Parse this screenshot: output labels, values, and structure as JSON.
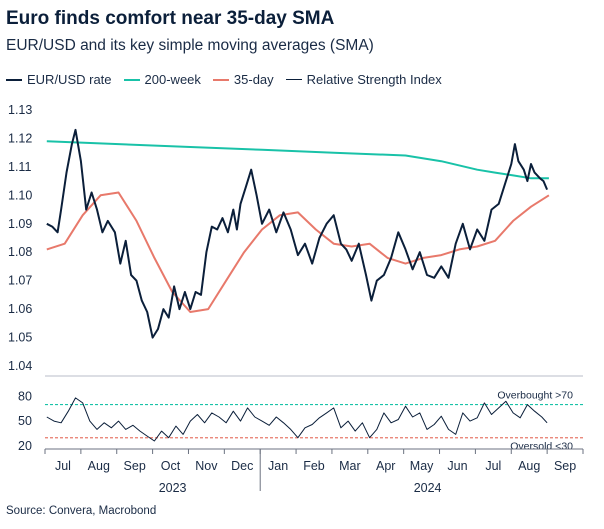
{
  "chart_data": {
    "type": "line",
    "title": "Euro finds comfort near 35-day SMA",
    "subtitle": "EUR/USD and its key simple moving averages (SMA)",
    "source": "Source: Convera, Macrobond",
    "legend": [
      {
        "name": "EUR/USD rate",
        "color": "#0b1f3a"
      },
      {
        "name": "200-week",
        "color": "#19c2a8"
      },
      {
        "name": "35-day",
        "color": "#e8796b"
      },
      {
        "name": "Relative Strength Index",
        "color": "#0b1f3a"
      }
    ],
    "x_ticks": [
      "Jul",
      "Aug",
      "Sep",
      "Oct",
      "Nov",
      "Dec",
      "Jan",
      "Feb",
      "Mar",
      "Apr",
      "May",
      "Jun",
      "Jul",
      "Aug",
      "Sep"
    ],
    "year_labels": [
      {
        "label": "2023"
      },
      {
        "label": "2024"
      }
    ],
    "main_panel": {
      "ylim": [
        1.04,
        1.13
      ],
      "y_ticks": [
        "1.13",
        "1.12",
        "1.11",
        "1.10",
        "1.09",
        "1.08",
        "1.07",
        "1.06",
        "1.05",
        "1.04"
      ],
      "series": [
        {
          "name": "EUR/USD rate",
          "color": "#0b1f3a",
          "x": [
            0.0,
            0.15,
            0.3,
            0.4,
            0.55,
            0.7,
            0.8,
            0.95,
            1.1,
            1.25,
            1.4,
            1.55,
            1.7,
            1.9,
            2.05,
            2.2,
            2.35,
            2.5,
            2.65,
            2.8,
            2.95,
            3.1,
            3.25,
            3.4,
            3.55,
            3.7,
            3.85,
            4.0,
            4.15,
            4.3,
            4.45,
            4.6,
            4.75,
            4.9,
            5.05,
            5.2,
            5.3,
            5.4,
            5.55,
            5.7,
            5.85,
            6.0,
            6.2,
            6.4,
            6.6,
            6.8,
            7.0,
            7.2,
            7.4,
            7.6,
            7.8,
            8.0,
            8.2,
            8.35,
            8.5,
            8.7,
            8.9,
            9.05,
            9.2,
            9.4,
            9.6,
            9.8,
            10.0,
            10.2,
            10.4,
            10.6,
            10.8,
            11.0,
            11.2,
            11.4,
            11.6,
            11.8,
            12.0,
            12.2,
            12.4,
            12.6,
            12.8,
            12.95,
            13.05,
            13.15,
            13.3,
            13.4,
            13.5,
            13.6,
            13.75,
            13.85,
            13.95
          ],
          "values": [
            1.09,
            1.089,
            1.087,
            1.095,
            1.108,
            1.118,
            1.123,
            1.112,
            1.095,
            1.101,
            1.095,
            1.087,
            1.091,
            1.087,
            1.076,
            1.084,
            1.072,
            1.07,
            1.063,
            1.059,
            1.05,
            1.053,
            1.06,
            1.057,
            1.068,
            1.06,
            1.066,
            1.06,
            1.066,
            1.065,
            1.08,
            1.089,
            1.088,
            1.092,
            1.087,
            1.095,
            1.088,
            1.097,
            1.103,
            1.109,
            1.1,
            1.09,
            1.095,
            1.087,
            1.094,
            1.088,
            1.079,
            1.083,
            1.076,
            1.085,
            1.09,
            1.093,
            1.083,
            1.081,
            1.077,
            1.083,
            1.072,
            1.063,
            1.07,
            1.072,
            1.078,
            1.087,
            1.081,
            1.074,
            1.08,
            1.072,
            1.071,
            1.075,
            1.071,
            1.083,
            1.09,
            1.081,
            1.088,
            1.084,
            1.095,
            1.097,
            1.105,
            1.111,
            1.118,
            1.112,
            1.109,
            1.105,
            1.111,
            1.108,
            1.106,
            1.105,
            1.102
          ]
        },
        {
          "name": "200-week",
          "color": "#19c2a8",
          "x": [
            0,
            2,
            4,
            6,
            8,
            10,
            11,
            12,
            12.5,
            13,
            13.5,
            14
          ],
          "values": [
            1.119,
            1.118,
            1.117,
            1.116,
            1.115,
            1.114,
            1.112,
            1.109,
            1.108,
            1.107,
            1.106,
            1.106
          ]
        },
        {
          "name": "35-day",
          "color": "#e8796b",
          "x": [
            0,
            0.5,
            1,
            1.5,
            2,
            2.5,
            3,
            3.5,
            4,
            4.5,
            5,
            5.5,
            6,
            6.5,
            7,
            7.5,
            8,
            8.5,
            9,
            9.5,
            10,
            10.5,
            11,
            11.5,
            12,
            12.5,
            13,
            13.5,
            14
          ],
          "values": [
            1.081,
            1.083,
            1.093,
            1.1,
            1.101,
            1.091,
            1.078,
            1.066,
            1.059,
            1.06,
            1.07,
            1.08,
            1.088,
            1.093,
            1.094,
            1.088,
            1.083,
            1.082,
            1.083,
            1.078,
            1.076,
            1.078,
            1.079,
            1.081,
            1.082,
            1.084,
            1.091,
            1.096,
            1.1
          ]
        }
      ]
    },
    "rsi_panel": {
      "ylim": [
        20,
        90
      ],
      "y_ticks": [
        "80",
        "50",
        "20"
      ],
      "overbought": {
        "value": 70,
        "label": "Overbought >70",
        "color": "#19c2a8"
      },
      "oversold": {
        "value": 30,
        "label": "Oversold <30",
        "color": "#e8796b"
      },
      "series": [
        {
          "name": "Relative Strength Index",
          "color": "#0b1f3a",
          "x": [
            0.0,
            0.2,
            0.4,
            0.6,
            0.8,
            1.0,
            1.2,
            1.4,
            1.6,
            1.8,
            2.0,
            2.2,
            2.4,
            2.6,
            2.8,
            3.0,
            3.2,
            3.4,
            3.6,
            3.8,
            4.0,
            4.2,
            4.4,
            4.6,
            4.8,
            5.0,
            5.2,
            5.4,
            5.6,
            5.8,
            6.0,
            6.2,
            6.4,
            6.6,
            6.8,
            7.0,
            7.2,
            7.4,
            7.6,
            7.8,
            8.0,
            8.2,
            8.4,
            8.6,
            8.8,
            9.0,
            9.2,
            9.4,
            9.6,
            9.8,
            10.0,
            10.2,
            10.4,
            10.6,
            10.8,
            11.0,
            11.2,
            11.4,
            11.6,
            11.8,
            12.0,
            12.2,
            12.4,
            12.6,
            12.8,
            13.0,
            13.2,
            13.4,
            13.6,
            13.8,
            13.95
          ],
          "values": [
            55,
            50,
            48,
            62,
            78,
            72,
            50,
            40,
            48,
            42,
            50,
            40,
            45,
            38,
            32,
            26,
            38,
            30,
            44,
            34,
            50,
            58,
            48,
            60,
            55,
            48,
            62,
            50,
            66,
            55,
            50,
            45,
            55,
            48,
            40,
            30,
            42,
            46,
            54,
            60,
            66,
            42,
            50,
            38,
            48,
            30,
            40,
            60,
            48,
            52,
            68,
            55,
            60,
            40,
            46,
            56,
            40,
            34,
            60,
            50,
            54,
            72,
            58,
            66,
            74,
            60,
            54,
            70,
            62,
            55,
            48
          ]
        }
      ]
    }
  }
}
